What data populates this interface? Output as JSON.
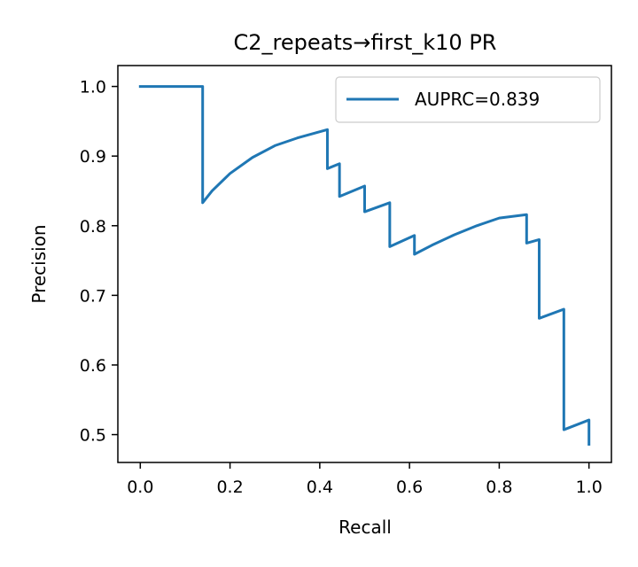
{
  "chart_data": {
    "type": "line",
    "title": "C2_repeats→first_k10 PR",
    "xlabel": "Recall",
    "ylabel": "Precision",
    "xlim": [
      -0.05,
      1.05
    ],
    "ylim": [
      0.46,
      1.03
    ],
    "xticks": [
      {
        "value": 0.0,
        "label": "0.0"
      },
      {
        "value": 0.2,
        "label": "0.2"
      },
      {
        "value": 0.4,
        "label": "0.4"
      },
      {
        "value": 0.6,
        "label": "0.6"
      },
      {
        "value": 0.8,
        "label": "0.8"
      },
      {
        "value": 1.0,
        "label": "1.0"
      }
    ],
    "yticks": [
      {
        "value": 0.5,
        "label": "0.5"
      },
      {
        "value": 0.6,
        "label": "0.6"
      },
      {
        "value": 0.7,
        "label": "0.7"
      },
      {
        "value": 0.8,
        "label": "0.8"
      },
      {
        "value": 0.9,
        "label": "0.9"
      },
      {
        "value": 1.0,
        "label": "1.0"
      }
    ],
    "grid": false,
    "legend_position": "top-right",
    "series": [
      {
        "name": "AUPRC=0.839",
        "color": "#1f77b4",
        "x": [
          0.0,
          0.139,
          0.139,
          0.16,
          0.2,
          0.25,
          0.3,
          0.35,
          0.417,
          0.417,
          0.444,
          0.444,
          0.5,
          0.5,
          0.556,
          0.556,
          0.611,
          0.611,
          0.65,
          0.7,
          0.75,
          0.8,
          0.861,
          0.861,
          0.889,
          0.889,
          0.944,
          0.944,
          1.0,
          1.0
        ],
        "y": [
          1.0,
          1.0,
          0.833,
          0.85,
          0.875,
          0.898,
          0.915,
          0.926,
          0.938,
          0.882,
          0.889,
          0.842,
          0.857,
          0.82,
          0.833,
          0.77,
          0.786,
          0.759,
          0.772,
          0.787,
          0.8,
          0.811,
          0.816,
          0.775,
          0.78,
          0.667,
          0.68,
          0.507,
          0.521,
          0.486
        ]
      }
    ]
  }
}
